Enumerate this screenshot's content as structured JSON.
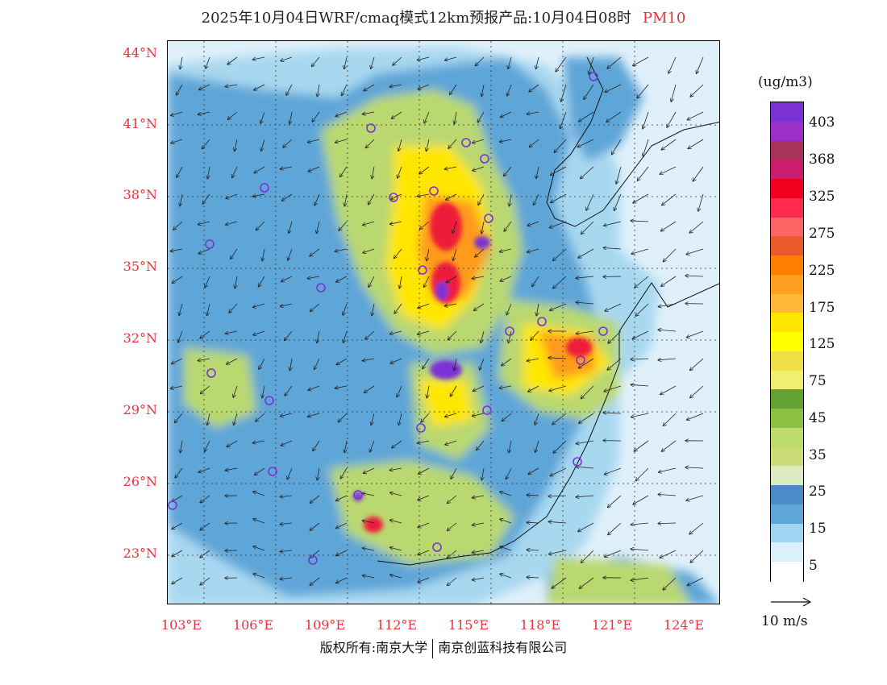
{
  "header": {
    "title": "2025年10月04日WRF/cmaq模式12km预报产品:10月04日08时",
    "pollutant": "PM10"
  },
  "map": {
    "latitude_labels": [
      "44°N",
      "41°N",
      "38°N",
      "35°N",
      "32°N",
      "29°N",
      "26°N",
      "23°N"
    ],
    "longitude_labels": [
      "103°E",
      "106°E",
      "109°E",
      "112°E",
      "115°E",
      "118°E",
      "121°E",
      "124°E"
    ],
    "colors": {
      "ocean": "#dff0fa",
      "land_low": "#a8d8f0",
      "land_mid": "#5ea6d8",
      "green": "#b9d870",
      "yellow": "#ffe600",
      "orange": "#ff9a1a",
      "red": "#ee1c3a",
      "purple": "#7b32d4"
    }
  },
  "legend": {
    "unit": "(ug/m3)",
    "labels": [
      "403",
      "368",
      "325",
      "275",
      "225",
      "175",
      "125",
      "75",
      "45",
      "35",
      "25",
      "15",
      "5"
    ],
    "colors": [
      "#7b32d4",
      "#9b30c8",
      "#a8325a",
      "#cc1c6e",
      "#f0001c",
      "#ff2a50",
      "#ff6464",
      "#ec5a2c",
      "#ff8000",
      "#ffa020",
      "#ffb83a",
      "#ffe600",
      "#ffff00",
      "#f2de46",
      "#f0f070",
      "#62a234",
      "#8cc040",
      "#bcdc6e",
      "#ccdc76",
      "#dcecc0",
      "#4a8cc8",
      "#5ea6d8",
      "#a0d4f0",
      "#daf0fa",
      "#ffffff"
    ]
  },
  "wind": {
    "reference_label": "10 m/s"
  },
  "footer": {
    "copyright_left": "版权所有:南京大学",
    "copyright_right": "南京创蓝科技有限公司"
  }
}
